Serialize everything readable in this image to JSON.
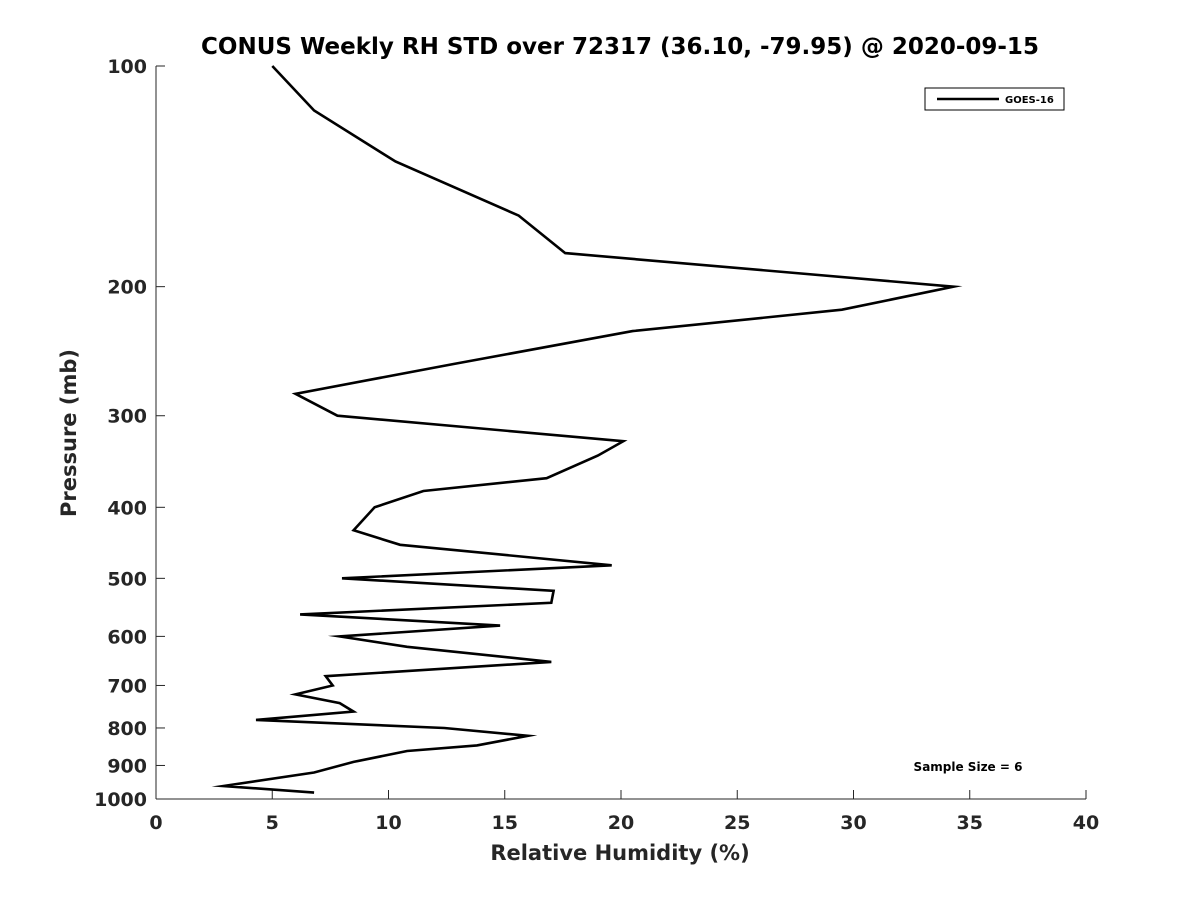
{
  "chart_data": {
    "type": "line",
    "title": "CONUS Weekly RH STD over 72317 (36.10, -79.95) @ 2020-09-15",
    "xlabel": "Relative Humidity (%)",
    "ylabel": "Pressure (mb)",
    "xlim": [
      0,
      40
    ],
    "ylim": [
      100,
      1000
    ],
    "y_scale": "log",
    "y_reversed": true,
    "x_ticks": [
      "0",
      "5",
      "10",
      "15",
      "20",
      "25",
      "30",
      "35",
      "40"
    ],
    "y_ticks": [
      "100",
      "200",
      "300",
      "400",
      "500",
      "600",
      "700",
      "800",
      "900",
      "1000"
    ],
    "grid": false,
    "legend_position": "top-right",
    "annotation": "Sample Size = 6",
    "line_color": "#000000",
    "series": [
      {
        "name": "GOES-16",
        "x": [
          5.0,
          6.8,
          10.3,
          15.6,
          17.6,
          34.3,
          29.5,
          20.5,
          12.8,
          6.0,
          7.8,
          20.1,
          19.0,
          16.8,
          11.5,
          9.4,
          8.5,
          10.5,
          19.6,
          8.0,
          17.1,
          17.0,
          6.2,
          14.8,
          7.9,
          10.8,
          17.0,
          7.3,
          7.6,
          6.0,
          7.9,
          8.5,
          4.3,
          12.4,
          16.0,
          13.8,
          10.8,
          8.5,
          6.8,
          2.9,
          6.8
        ],
        "y": [
          100,
          115,
          135,
          160,
          180,
          200,
          215,
          230,
          255,
          280,
          300,
          325,
          340,
          365,
          380,
          400,
          430,
          450,
          480,
          500,
          520,
          540,
          560,
          580,
          600,
          620,
          650,
          680,
          700,
          720,
          740,
          760,
          780,
          800,
          820,
          845,
          860,
          890,
          920,
          960,
          980
        ]
      }
    ]
  }
}
